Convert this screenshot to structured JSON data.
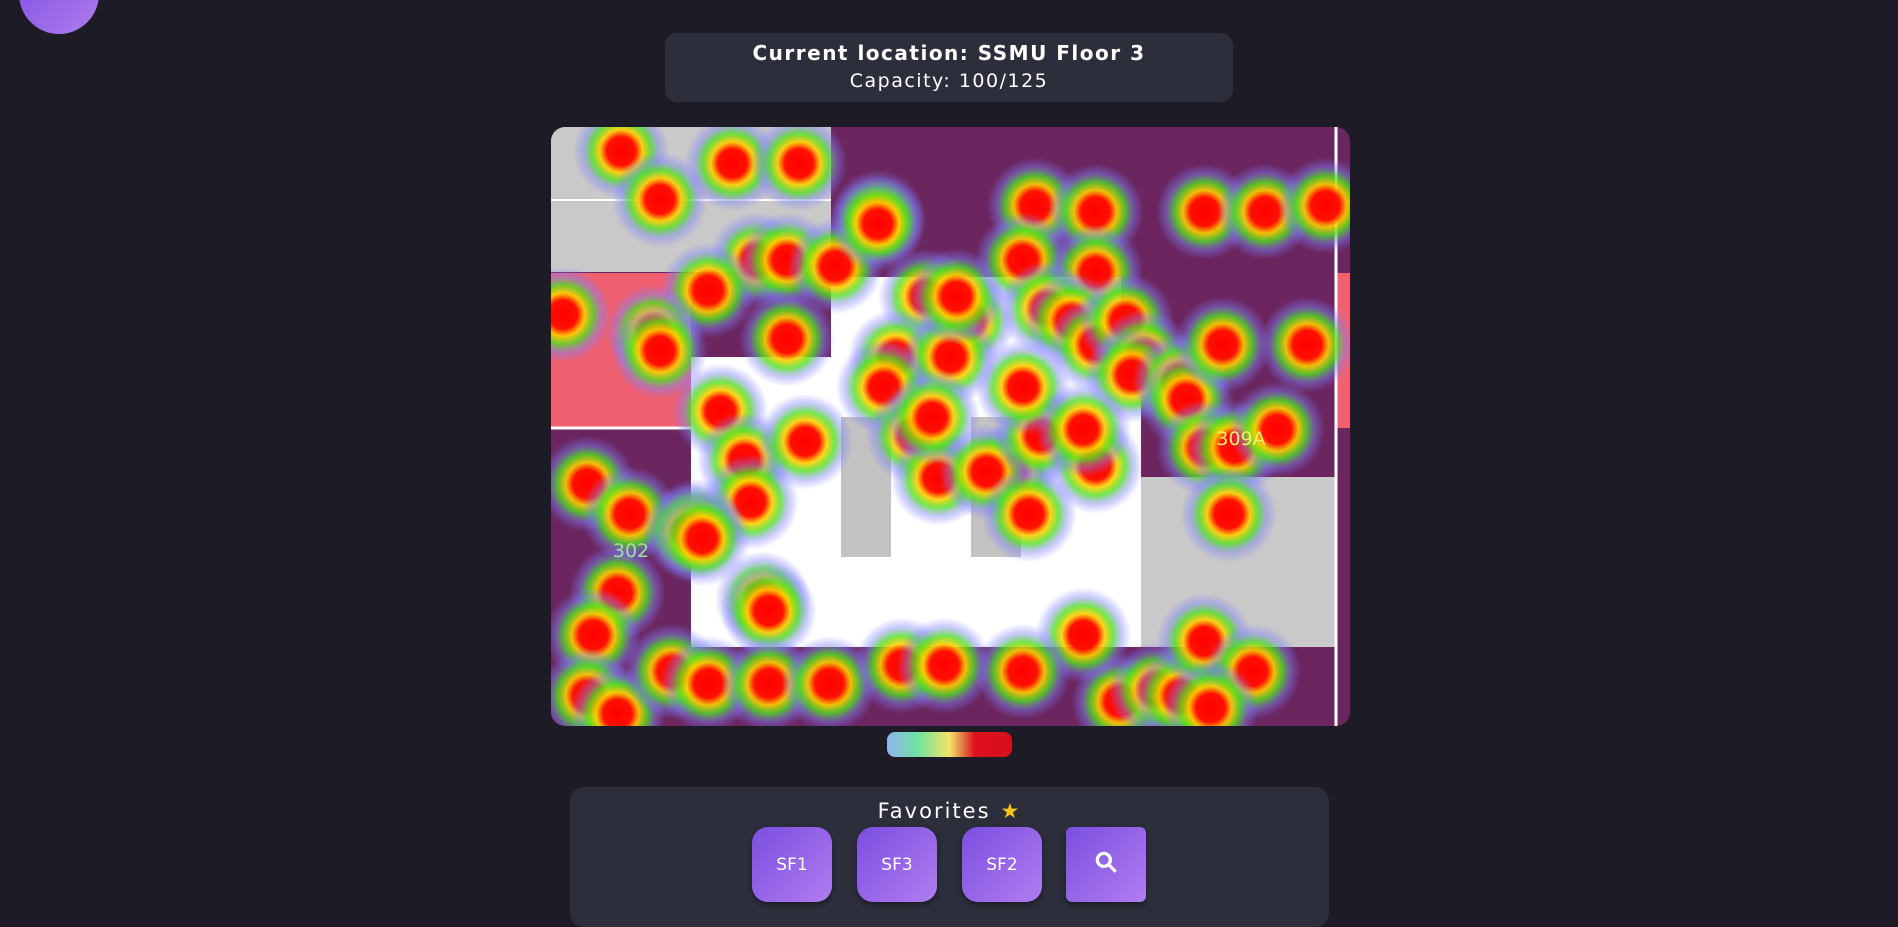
{
  "header": {
    "title": "Current location: SSMU Floor 3",
    "capacity": "Capacity: 100/125"
  },
  "map": {
    "room_labels": [
      "302",
      "309A"
    ]
  },
  "favorites": {
    "title": "Favorites",
    "buttons": [
      "SF1",
      "SF3",
      "SF2"
    ]
  }
}
